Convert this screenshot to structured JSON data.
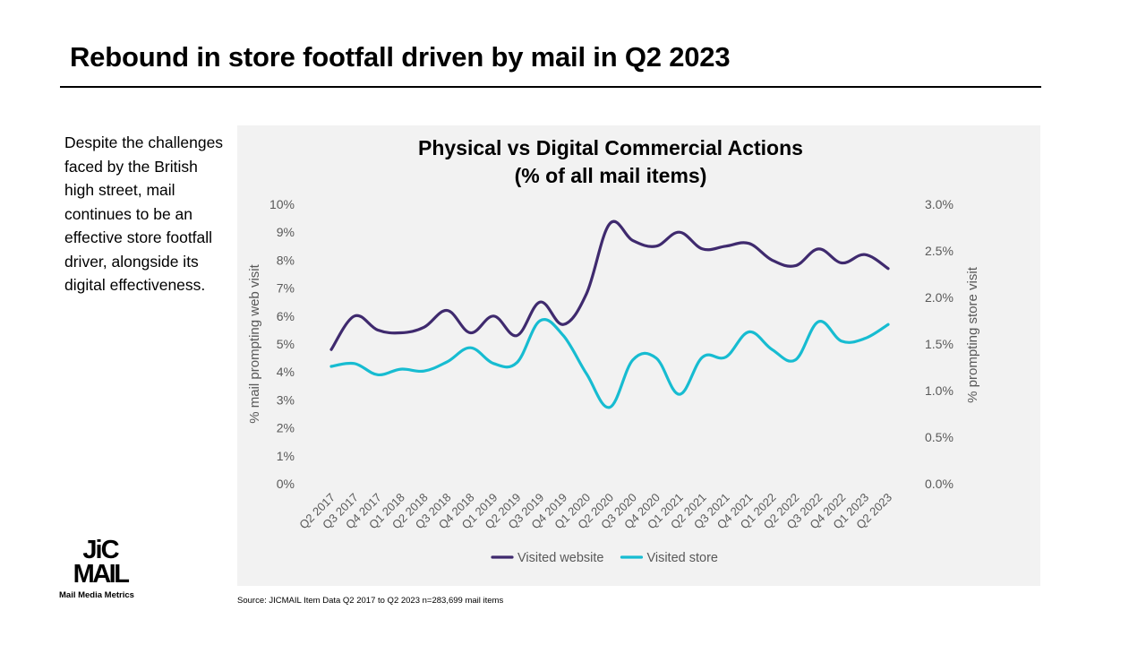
{
  "slide": {
    "title": "Rebound in store footfall driven by mail in Q2 2023",
    "body_text": "Despite the challenges faced by the British high street, mail continues to be an effective store footfall driver, alongside its digital effectiveness.",
    "source": "Source: JICMAIL  Item Data Q2 2017 to Q2 2023 n=283,699 mail items"
  },
  "logo": {
    "word": "JICMAIL",
    "tagline": "Mail Media Metrics"
  },
  "chart_data": {
    "type": "line",
    "title": "Physical vs Digital Commercial Actions",
    "subtitle": "(% of all mail items)",
    "ylabel": "% mail prompting web visit",
    "y2label": "% prompting store visit",
    "ylim": [
      0,
      10
    ],
    "y2lim": [
      0,
      3
    ],
    "y_ticks": [
      "0%",
      "1%",
      "2%",
      "3%",
      "4%",
      "5%",
      "6%",
      "7%",
      "8%",
      "9%",
      "10%"
    ],
    "y2_ticks": [
      "0.0%",
      "0.5%",
      "1.0%",
      "1.5%",
      "2.0%",
      "2.5%",
      "3.0%"
    ],
    "grid": false,
    "legend_position": "bottom",
    "categories": [
      "Q2 2017",
      "Q3 2017",
      "Q4 2017",
      "Q1 2018",
      "Q2 2018",
      "Q3 2018",
      "Q4 2018",
      "Q1 2019",
      "Q2 2019",
      "Q3 2019",
      "Q4 2019",
      "Q1 2020",
      "Q2 2020",
      "Q3 2020",
      "Q4 2020",
      "Q1 2021",
      "Q2 2021",
      "Q3 2021",
      "Q4 2021",
      "Q1 2022",
      "Q2 2022",
      "Q3 2022",
      "Q4 2022",
      "Q1 2023",
      "Q2 2023"
    ],
    "series": [
      {
        "name": "Visited website",
        "axis": "left",
        "color": "#3f2a6e",
        "values": [
          4.8,
          6.0,
          5.5,
          5.4,
          5.6,
          6.2,
          5.4,
          6.0,
          5.3,
          6.5,
          5.7,
          6.8,
          9.3,
          8.7,
          8.5,
          9.0,
          8.4,
          8.5,
          8.6,
          8.0,
          7.8,
          8.4,
          7.9,
          8.2,
          7.7
        ]
      },
      {
        "name": "Visited store",
        "axis": "right",
        "color": "#17bcd1",
        "values": [
          1.26,
          1.29,
          1.17,
          1.23,
          1.21,
          1.31,
          1.46,
          1.29,
          1.3,
          1.75,
          1.59,
          1.18,
          0.82,
          1.33,
          1.35,
          0.96,
          1.36,
          1.36,
          1.63,
          1.44,
          1.33,
          1.74,
          1.53,
          1.56,
          1.71
        ]
      }
    ]
  }
}
